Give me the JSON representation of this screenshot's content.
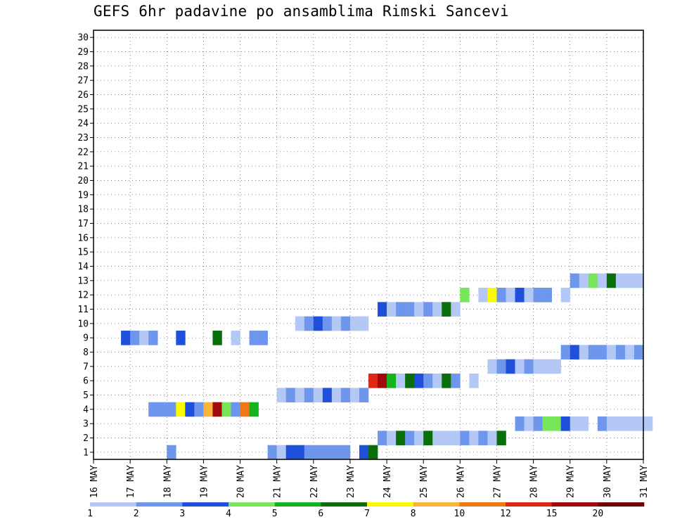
{
  "title": "GEFS 6hr padavine po ansamblima Rimski Sancevi",
  "chart_data": {
    "type": "heatmap",
    "title": "GEFS 6hr padavine po ansamblima Rimski Sancevi",
    "x_tick_labels": [
      "16 MAY",
      "17 MAY",
      "18 MAY",
      "19 MAY",
      "20 MAY",
      "21 MAY",
      "22 MAY",
      "23 MAY",
      "24 MAY",
      "25 MAY",
      "26 MAY",
      "27 MAY",
      "28 MAY",
      "29 MAY",
      "30 MAY",
      "31 MAY"
    ],
    "y_tick_labels": [
      "1",
      "2",
      "3",
      "4",
      "5",
      "6",
      "7",
      "8",
      "9",
      "10",
      "11",
      "12",
      "13",
      "14",
      "15",
      "16",
      "17",
      "18",
      "19",
      "20",
      "21",
      "22",
      "23",
      "24",
      "25",
      "26",
      "27",
      "28",
      "29",
      "30"
    ],
    "steps_per_day": 4,
    "members": 30,
    "grid": true,
    "legend_position": "bottom",
    "colorbar": {
      "labels": [
        "1",
        "2",
        "3",
        "4",
        "5",
        "6",
        "7",
        "8",
        "10",
        "12",
        "15",
        "20"
      ],
      "colors": [
        "#b4c8f5",
        "#6e96ec",
        "#1e50dc",
        "#78e65a",
        "#14b41e",
        "#0a6e0a",
        "#fafa00",
        "#fab43c",
        "#f07814",
        "#dc2814",
        "#a00a0a",
        "#6e0000"
      ]
    },
    "cells": [
      [
        1,
        8,
        1
      ],
      [
        1,
        19,
        1
      ],
      [
        1,
        20,
        0
      ],
      [
        1,
        21,
        2
      ],
      [
        1,
        22,
        2
      ],
      [
        1,
        23,
        1
      ],
      [
        1,
        24,
        1
      ],
      [
        1,
        25,
        1
      ],
      [
        1,
        26,
        1
      ],
      [
        1,
        27,
        1
      ],
      [
        1,
        29,
        2
      ],
      [
        1,
        30,
        5
      ],
      [
        2,
        31,
        1
      ],
      [
        2,
        32,
        0
      ],
      [
        2,
        33,
        5
      ],
      [
        2,
        34,
        1
      ],
      [
        2,
        35,
        0
      ],
      [
        2,
        36,
        5
      ],
      [
        2,
        37,
        0
      ],
      [
        2,
        38,
        0
      ],
      [
        2,
        39,
        0
      ],
      [
        2,
        40,
        1
      ],
      [
        2,
        41,
        0
      ],
      [
        2,
        42,
        1
      ],
      [
        2,
        43,
        0
      ],
      [
        2,
        44,
        5
      ],
      [
        3,
        46,
        1
      ],
      [
        3,
        47,
        0
      ],
      [
        3,
        48,
        1
      ],
      [
        3,
        49,
        3
      ],
      [
        3,
        50,
        3
      ],
      [
        3,
        51,
        2
      ],
      [
        3,
        52,
        0
      ],
      [
        3,
        53,
        0
      ],
      [
        3,
        55,
        1
      ],
      [
        3,
        56,
        0
      ],
      [
        3,
        57,
        0
      ],
      [
        3,
        58,
        0
      ],
      [
        3,
        59,
        0
      ],
      [
        3,
        60,
        0
      ],
      [
        4,
        6,
        1
      ],
      [
        4,
        7,
        1
      ],
      [
        4,
        8,
        1
      ],
      [
        4,
        9,
        6
      ],
      [
        4,
        10,
        2
      ],
      [
        4,
        11,
        1
      ],
      [
        4,
        12,
        7
      ],
      [
        4,
        13,
        10
      ],
      [
        4,
        14,
        3
      ],
      [
        4,
        15,
        1
      ],
      [
        4,
        16,
        8
      ],
      [
        4,
        17,
        4
      ],
      [
        5,
        20,
        0
      ],
      [
        5,
        21,
        1
      ],
      [
        5,
        22,
        0
      ],
      [
        5,
        23,
        1
      ],
      [
        5,
        24,
        0
      ],
      [
        5,
        25,
        2
      ],
      [
        5,
        26,
        0
      ],
      [
        5,
        27,
        1
      ],
      [
        5,
        28,
        0
      ],
      [
        5,
        29,
        1
      ],
      [
        6,
        30,
        9
      ],
      [
        6,
        31,
        10
      ],
      [
        6,
        32,
        4
      ],
      [
        6,
        33,
        0
      ],
      [
        6,
        34,
        5
      ],
      [
        6,
        35,
        2
      ],
      [
        6,
        36,
        1
      ],
      [
        6,
        37,
        0
      ],
      [
        6,
        38,
        5
      ],
      [
        6,
        39,
        1
      ],
      [
        6,
        41,
        0
      ],
      [
        7,
        43,
        0
      ],
      [
        7,
        44,
        1
      ],
      [
        7,
        45,
        2
      ],
      [
        7,
        46,
        0
      ],
      [
        7,
        47,
        1
      ],
      [
        7,
        48,
        0
      ],
      [
        7,
        49,
        0
      ],
      [
        7,
        50,
        0
      ],
      [
        8,
        51,
        1
      ],
      [
        8,
        52,
        2
      ],
      [
        8,
        53,
        0
      ],
      [
        8,
        54,
        1
      ],
      [
        8,
        55,
        1
      ],
      [
        8,
        56,
        0
      ],
      [
        8,
        57,
        1
      ],
      [
        8,
        58,
        0
      ],
      [
        8,
        59,
        1
      ],
      [
        9,
        3,
        2
      ],
      [
        9,
        4,
        1
      ],
      [
        9,
        5,
        0
      ],
      [
        9,
        6,
        1
      ],
      [
        9,
        9,
        2
      ],
      [
        9,
        13,
        5
      ],
      [
        9,
        15,
        0
      ],
      [
        9,
        17,
        1
      ],
      [
        9,
        18,
        1
      ],
      [
        10,
        22,
        0
      ],
      [
        10,
        23,
        1
      ],
      [
        10,
        24,
        2
      ],
      [
        10,
        25,
        1
      ],
      [
        10,
        26,
        0
      ],
      [
        10,
        27,
        1
      ],
      [
        10,
        28,
        0
      ],
      [
        10,
        29,
        0
      ],
      [
        11,
        31,
        2
      ],
      [
        11,
        32,
        0
      ],
      [
        11,
        33,
        1
      ],
      [
        11,
        34,
        1
      ],
      [
        11,
        35,
        0
      ],
      [
        11,
        36,
        1
      ],
      [
        11,
        37,
        0
      ],
      [
        11,
        38,
        5
      ],
      [
        11,
        39,
        0
      ],
      [
        12,
        40,
        3
      ],
      [
        12,
        42,
        0
      ],
      [
        12,
        43,
        6
      ],
      [
        12,
        44,
        1
      ],
      [
        12,
        45,
        0
      ],
      [
        12,
        46,
        2
      ],
      [
        12,
        47,
        0
      ],
      [
        12,
        48,
        1
      ],
      [
        12,
        49,
        1
      ],
      [
        12,
        51,
        0
      ],
      [
        13,
        52,
        1
      ],
      [
        13,
        53,
        0
      ],
      [
        13,
        54,
        3
      ],
      [
        13,
        55,
        0
      ],
      [
        13,
        56,
        5
      ],
      [
        13,
        57,
        0
      ],
      [
        13,
        58,
        0
      ],
      [
        13,
        59,
        0
      ]
    ]
  }
}
